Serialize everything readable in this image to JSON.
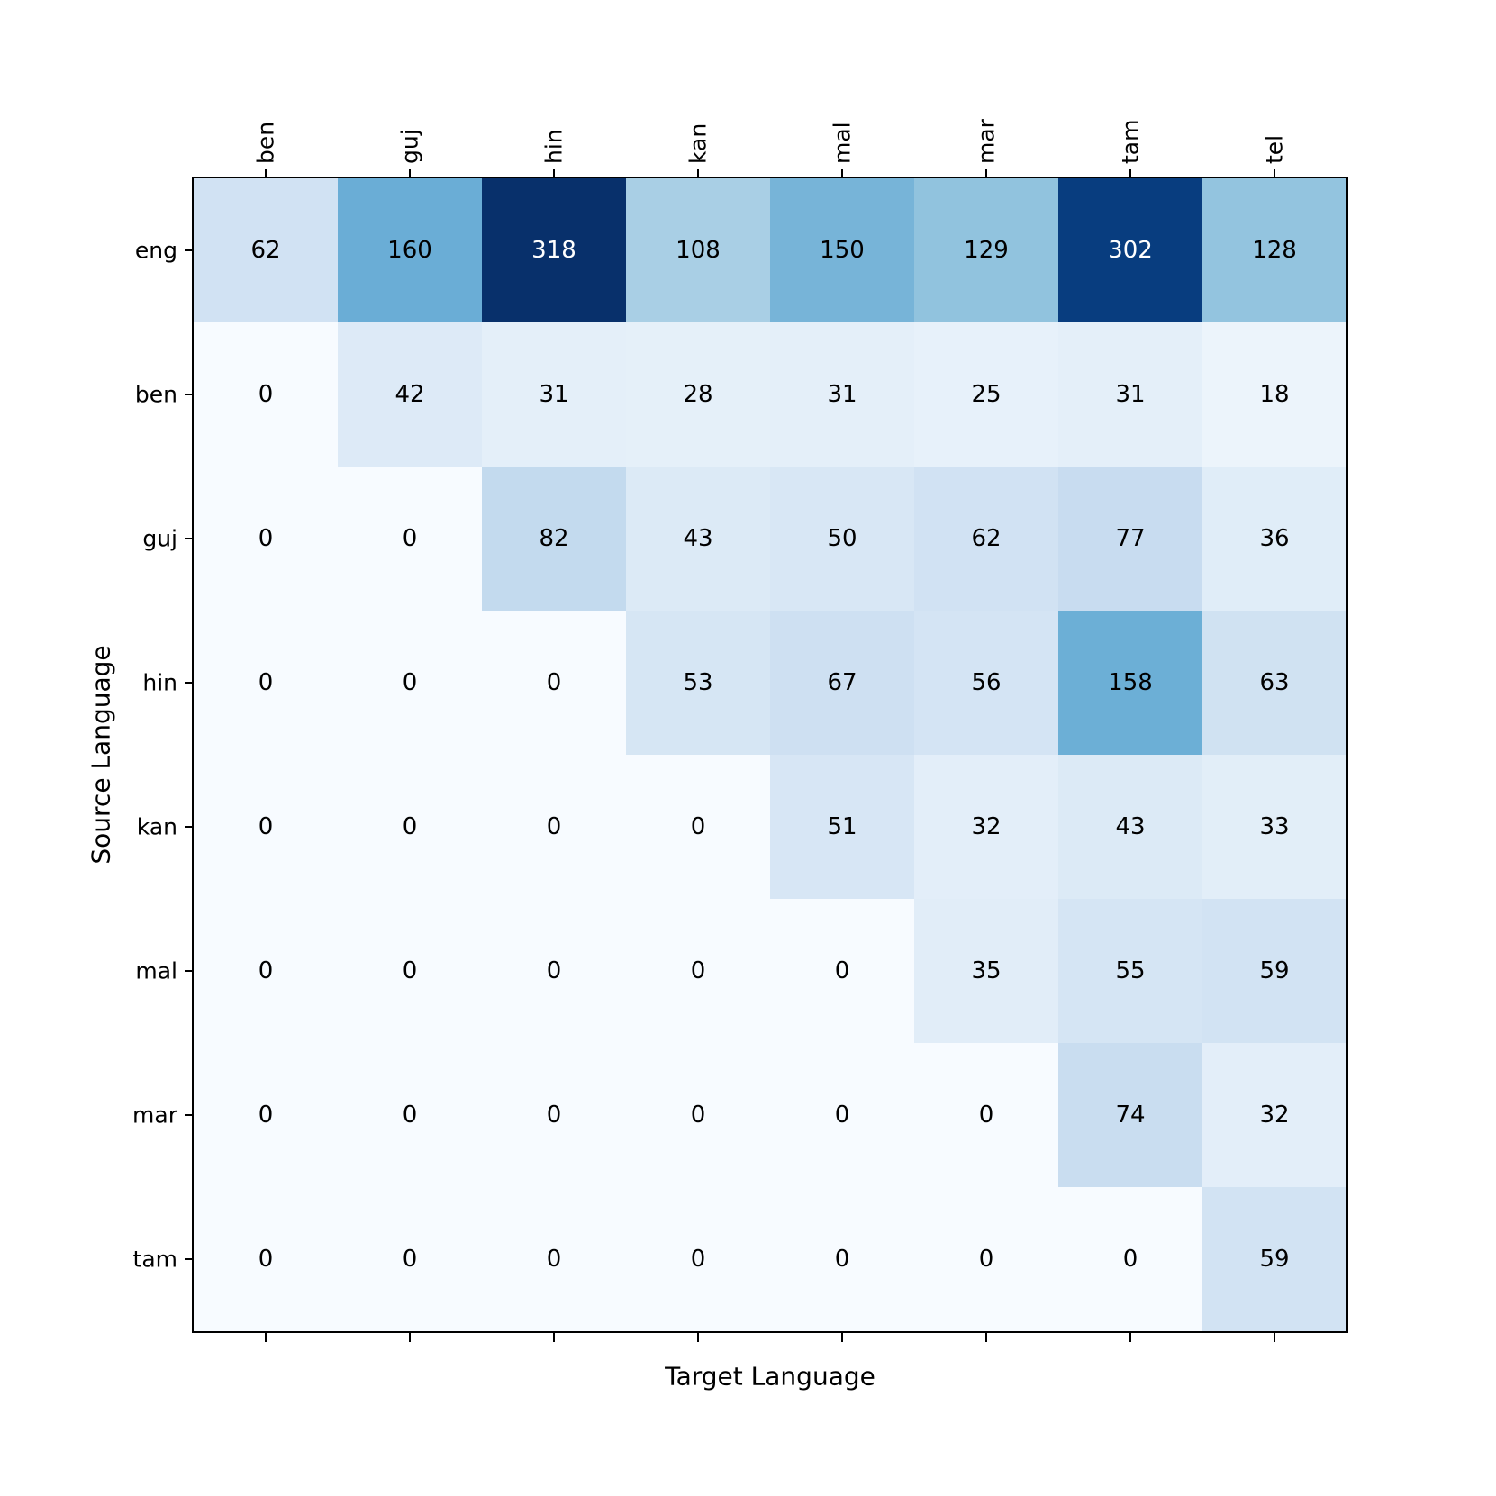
{
  "chart_data": {
    "type": "heatmap",
    "title": "",
    "xlabel": "Target Language",
    "ylabel": "Source Language",
    "x_categories": [
      "ben",
      "guj",
      "hin",
      "kan",
      "mal",
      "mar",
      "tam",
      "tel"
    ],
    "y_categories": [
      "eng",
      "ben",
      "guj",
      "hin",
      "kan",
      "mal",
      "mar",
      "tam"
    ],
    "values": [
      [
        62,
        160,
        318,
        108,
        150,
        129,
        302,
        128
      ],
      [
        0,
        42,
        31,
        28,
        31,
        25,
        31,
        18
      ],
      [
        0,
        0,
        82,
        43,
        50,
        62,
        77,
        36
      ],
      [
        0,
        0,
        0,
        53,
        67,
        56,
        158,
        63
      ],
      [
        0,
        0,
        0,
        0,
        51,
        32,
        43,
        33
      ],
      [
        0,
        0,
        0,
        0,
        0,
        35,
        55,
        59
      ],
      [
        0,
        0,
        0,
        0,
        0,
        0,
        74,
        32
      ],
      [
        0,
        0,
        0,
        0,
        0,
        0,
        0,
        59
      ]
    ],
    "colormap": "Blues",
    "vmin": 0,
    "vmax": 318,
    "legend": "none",
    "grid": false,
    "colors": {
      "min_cell": "#f7fbff",
      "max_cell": "#08306b",
      "axis": "#000000",
      "annotation_dark_cells": "#ffffff",
      "annotation_light_cells": "#000000"
    }
  }
}
